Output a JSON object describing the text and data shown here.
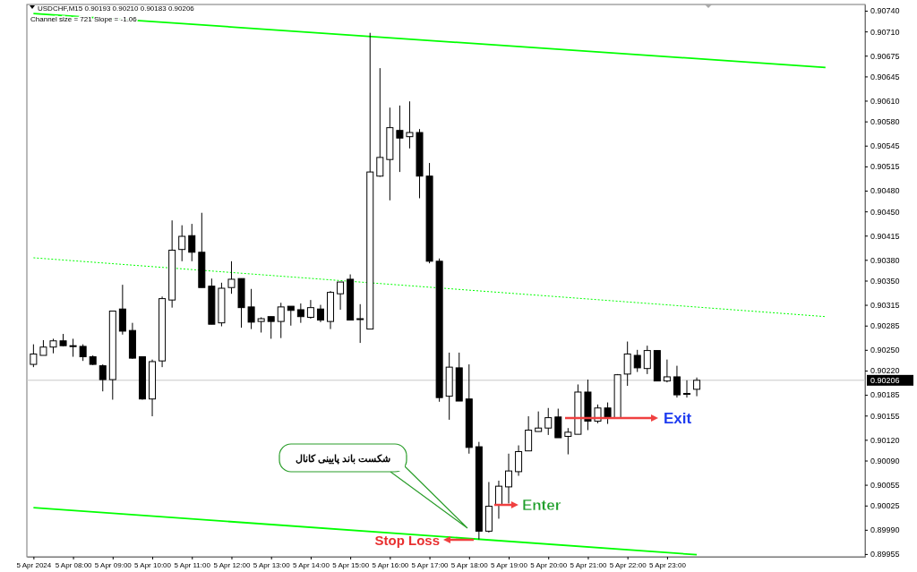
{
  "chart_data": {
    "type": "candlestick",
    "title": "USDCHF,M15  0.90193 0.90210 0.90183 0.90206",
    "subtitle": "Channel size = 721 Slope = -1.06",
    "x": [
      "2024-04-05T07:00",
      "2024-04-05T07:15",
      "2024-04-05T07:30",
      "2024-04-05T07:45",
      "2024-04-05T08:00",
      "2024-04-05T08:15",
      "2024-04-05T08:30",
      "2024-04-05T08:45",
      "2024-04-05T09:00",
      "2024-04-05T09:15",
      "2024-04-05T09:30",
      "2024-04-05T09:45",
      "2024-04-05T10:00",
      "2024-04-05T10:15",
      "2024-04-05T10:30",
      "2024-04-05T10:45",
      "2024-04-05T11:00",
      "2024-04-05T11:15",
      "2024-04-05T11:30",
      "2024-04-05T11:45",
      "2024-04-05T12:00",
      "2024-04-05T12:15",
      "2024-04-05T12:30",
      "2024-04-05T12:45",
      "2024-04-05T13:00",
      "2024-04-05T13:15",
      "2024-04-05T13:30",
      "2024-04-05T13:45",
      "2024-04-05T14:00",
      "2024-04-05T14:15",
      "2024-04-05T14:30",
      "2024-04-05T14:45",
      "2024-04-05T15:00",
      "2024-04-05T15:15",
      "2024-04-05T15:30",
      "2024-04-05T15:45",
      "2024-04-05T16:00",
      "2024-04-05T16:15",
      "2024-04-05T16:30",
      "2024-04-05T16:45",
      "2024-04-05T17:00",
      "2024-04-05T17:15",
      "2024-04-05T17:30",
      "2024-04-05T17:45",
      "2024-04-05T18:00",
      "2024-04-05T18:15",
      "2024-04-05T18:30",
      "2024-04-05T18:45",
      "2024-04-05T19:00",
      "2024-04-05T19:15",
      "2024-04-05T19:30",
      "2024-04-05T19:45",
      "2024-04-05T20:00",
      "2024-04-05T20:15",
      "2024-04-05T20:30",
      "2024-04-05T20:45",
      "2024-04-05T21:00",
      "2024-04-05T21:15",
      "2024-04-05T21:30",
      "2024-04-05T21:45",
      "2024-04-05T22:00",
      "2024-04-05T22:15",
      "2024-04-05T22:30",
      "2024-04-05T22:45",
      "2024-04-05T23:00",
      "2024-04-05T23:15",
      "2024-04-05T23:30",
      "2024-04-05T23:45"
    ],
    "ohlc": [
      [
        0.90229,
        0.90258,
        0.90225,
        0.90244
      ],
      [
        0.90242,
        0.90264,
        0.90242,
        0.90254
      ],
      [
        0.90254,
        0.90266,
        0.90245,
        0.90263
      ],
      [
        0.90263,
        0.90273,
        0.90255,
        0.90256
      ],
      [
        0.90256,
        0.90266,
        0.9024,
        0.90255
      ],
      [
        0.90255,
        0.90258,
        0.90234,
        0.9024
      ],
      [
        0.9024,
        0.90242,
        0.90228,
        0.90229
      ],
      [
        0.90227,
        0.90229,
        0.9019,
        0.90207
      ],
      [
        0.90207,
        0.90306,
        0.90178,
        0.90306
      ],
      [
        0.90309,
        0.90344,
        0.90272,
        0.90277
      ],
      [
        0.90278,
        0.90289,
        0.90237,
        0.90238
      ],
      [
        0.9024,
        0.9024,
        0.90178,
        0.90179
      ],
      [
        0.90179,
        0.90236,
        0.90154,
        0.90233
      ],
      [
        0.90234,
        0.90327,
        0.90225,
        0.90324
      ],
      [
        0.90322,
        0.90437,
        0.90311,
        0.90394
      ],
      [
        0.90395,
        0.9043,
        0.90378,
        0.90414
      ],
      [
        0.90415,
        0.90432,
        0.90378,
        0.90391
      ],
      [
        0.90391,
        0.90448,
        0.9034,
        0.9034
      ],
      [
        0.90342,
        0.90353,
        0.90287,
        0.90287
      ],
      [
        0.90289,
        0.90347,
        0.90284,
        0.90339
      ],
      [
        0.9034,
        0.90378,
        0.90331,
        0.90352
      ],
      [
        0.90353,
        0.90353,
        0.90282,
        0.90311
      ],
      [
        0.90312,
        0.90338,
        0.9028,
        0.9029
      ],
      [
        0.90291,
        0.90297,
        0.90275,
        0.90295
      ],
      [
        0.90298,
        0.90298,
        0.90266,
        0.90291
      ],
      [
        0.90291,
        0.90318,
        0.90267,
        0.90312
      ],
      [
        0.90313,
        0.90313,
        0.90285,
        0.90307
      ],
      [
        0.90308,
        0.90317,
        0.90289,
        0.90298
      ],
      [
        0.90297,
        0.90322,
        0.90295,
        0.90311
      ],
      [
        0.90309,
        0.90315,
        0.9029,
        0.90293
      ],
      [
        0.90291,
        0.90335,
        0.9028,
        0.90333
      ],
      [
        0.90331,
        0.90348,
        0.90308,
        0.90348
      ],
      [
        0.90352,
        0.90359,
        0.90293,
        0.90293
      ],
      [
        0.90295,
        0.90316,
        0.9026,
        0.90294
      ],
      [
        0.9028,
        0.90708,
        0.9028,
        0.90507
      ],
      [
        0.90501,
        0.90657,
        0.905,
        0.90528
      ],
      [
        0.90525,
        0.906,
        0.90466,
        0.90571
      ],
      [
        0.90567,
        0.90603,
        0.90507,
        0.90556
      ],
      [
        0.90558,
        0.90609,
        0.90541,
        0.90564
      ],
      [
        0.90564,
        0.90569,
        0.90469,
        0.90501
      ],
      [
        0.90501,
        0.9052,
        0.90375,
        0.90378
      ],
      [
        0.90378,
        0.90382,
        0.90175,
        0.90181
      ],
      [
        0.90183,
        0.90246,
        0.90149,
        0.90225
      ],
      [
        0.90224,
        0.90246,
        0.90176,
        0.90176
      ],
      [
        0.90179,
        0.90229,
        0.901,
        0.90109
      ],
      [
        0.9011,
        0.90117,
        0.89976,
        0.89988
      ],
      [
        0.89988,
        0.90059,
        0.89986,
        0.90024
      ],
      [
        0.90026,
        0.90061,
        0.90006,
        0.90053
      ],
      [
        0.90052,
        0.901,
        0.90028,
        0.90075
      ],
      [
        0.90074,
        0.90112,
        0.90068,
        0.90103
      ],
      [
        0.90104,
        0.90154,
        0.90104,
        0.90134
      ],
      [
        0.90132,
        0.90161,
        0.90132,
        0.90137
      ],
      [
        0.90137,
        0.90166,
        0.90127,
        0.90152
      ],
      [
        0.90153,
        0.90165,
        0.90123,
        0.90123
      ],
      [
        0.90125,
        0.90137,
        0.90099,
        0.90131
      ],
      [
        0.90128,
        0.902,
        0.90128,
        0.90189
      ],
      [
        0.90189,
        0.90207,
        0.90134,
        0.90147
      ],
      [
        0.90147,
        0.90171,
        0.90144,
        0.90166
      ],
      [
        0.90166,
        0.90174,
        0.90143,
        0.90152
      ],
      [
        0.90152,
        0.90215,
        0.90152,
        0.90214
      ],
      [
        0.90215,
        0.90262,
        0.90198,
        0.90244
      ],
      [
        0.90242,
        0.9025,
        0.90218,
        0.90224
      ],
      [
        0.90223,
        0.90256,
        0.90215,
        0.90249
      ],
      [
        0.90249,
        0.90249,
        0.90205,
        0.90205
      ],
      [
        0.90205,
        0.90236,
        0.90203,
        0.90211
      ],
      [
        0.90211,
        0.90227,
        0.90181,
        0.90185
      ],
      [
        0.90187,
        0.90206,
        0.90181,
        0.90187
      ],
      [
        0.90193,
        0.9021,
        0.90183,
        0.90206
      ]
    ],
    "series": [
      {
        "type": "line",
        "x": [
          "2024-04-05T07:00",
          "2024-04-06T03:00"
        ],
        "values": [
          0.90736,
          0.90658
        ],
        "color": "#00ff00",
        "line_style": "solid"
      },
      {
        "type": "line",
        "x": [
          "2024-04-05T07:00",
          "2024-04-06T03:00"
        ],
        "values": [
          0.90383,
          0.90298
        ],
        "color": "#00ff00",
        "line_style": "dotted"
      },
      {
        "type": "line",
        "x": [
          "2024-04-05T07:00",
          "2024-04-05T23:45"
        ],
        "values": [
          0.90022,
          0.89954
        ],
        "color": "#00ff00",
        "line_style": "solid"
      }
    ],
    "xlim": [
      "2024-04-05T06:50",
      "2024-04-06T04:00"
    ],
    "xticks": [
      {
        "value": "2024-04-05T07:00",
        "label": "5 Apr 2024"
      },
      {
        "value": "2024-04-05T08:00",
        "label": "5 Apr 08:00"
      },
      {
        "value": "2024-04-05T09:00",
        "label": "5 Apr 09:00"
      },
      {
        "value": "2024-04-05T10:00",
        "label": "5 Apr 10:00"
      },
      {
        "value": "2024-04-05T11:00",
        "label": "5 Apr 11:00"
      },
      {
        "value": "2024-04-05T12:00",
        "label": "5 Apr 12:00"
      },
      {
        "value": "2024-04-05T13:00",
        "label": "5 Apr 13:00"
      },
      {
        "value": "2024-04-05T14:00",
        "label": "5 Apr 14:00"
      },
      {
        "value": "2024-04-05T15:00",
        "label": "5 Apr 15:00"
      },
      {
        "value": "2024-04-05T16:00",
        "label": "5 Apr 16:00"
      },
      {
        "value": "2024-04-05T17:00",
        "label": "5 Apr 17:00"
      },
      {
        "value": "2024-04-05T18:00",
        "label": "5 Apr 18:00"
      },
      {
        "value": "2024-04-05T19:00",
        "label": "5 Apr 19:00"
      },
      {
        "value": "2024-04-05T20:00",
        "label": "5 Apr 20:00"
      },
      {
        "value": "2024-04-05T21:00",
        "label": "5 Apr 21:00"
      },
      {
        "value": "2024-04-05T22:00",
        "label": "5 Apr 22:00"
      },
      {
        "value": "2024-04-05T23:00",
        "label": "5 Apr 23:00"
      }
    ],
    "ylim": [
      0.89951,
      0.90749
    ],
    "yticks": [
      {
        "value": 0.9074,
        "label": "0.90740"
      },
      {
        "value": 0.9071,
        "label": "0.90710"
      },
      0.90675,
      0.90645,
      {
        "value": 0.9061,
        "label": "0.90610"
      },
      {
        "value": 0.9058,
        "label": "0.90580"
      },
      0.90545,
      0.90515,
      {
        "value": 0.9048,
        "label": "0.90480"
      },
      {
        "value": 0.9045,
        "label": "0.90450"
      },
      0.90415,
      {
        "value": 0.9038,
        "label": "0.90380"
      },
      {
        "value": 0.9035,
        "label": "0.90350"
      },
      0.90315,
      0.90285,
      {
        "value": 0.9025,
        "label": "0.90250"
      },
      {
        "value": 0.9022,
        "label": "0.90220"
      },
      0.90185,
      0.90155,
      {
        "value": 0.9012,
        "label": "0.90120"
      },
      {
        "value": 0.9009,
        "label": "0.90090"
      },
      0.90055,
      0.90025,
      {
        "value": 0.8999,
        "label": "0.89990"
      },
      0.89955
    ],
    "ref_lines": [
      {
        "axis": "y",
        "value": 0.90206,
        "label": "0.90206",
        "color": "#c8c8c8"
      }
    ],
    "annotations": [
      "شکست باند پایینی کانال",
      {
        "text": "Enter",
        "x": "2024-04-05T18:30",
        "y": 0.90026
      },
      "Exit",
      "Stop Loss"
    ]
  }
}
